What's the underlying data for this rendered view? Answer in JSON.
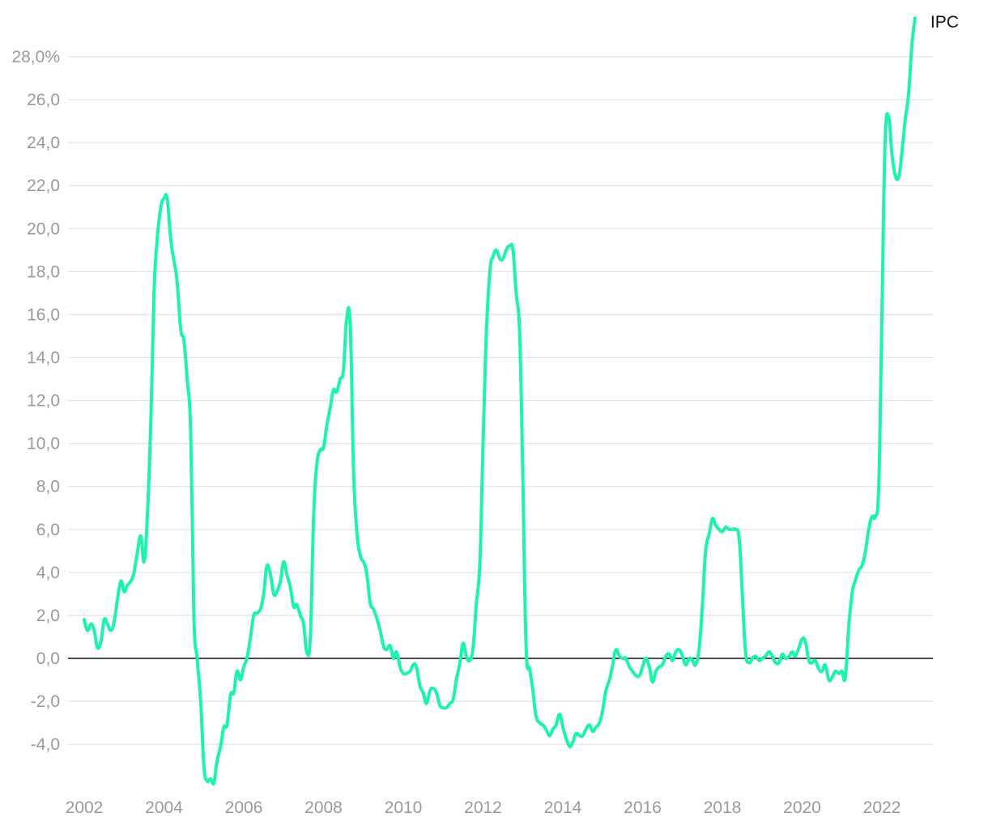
{
  "chart_data": {
    "type": "line",
    "title": "",
    "xlabel": "",
    "ylabel": "",
    "ylim": [
      -6,
      29.5
    ],
    "xlim": [
      2002,
      2023.25
    ],
    "grid": true,
    "legend": "none",
    "y_ticks": [
      {
        "value": 28,
        "label": "28,0%"
      },
      {
        "value": 26,
        "label": "26,0"
      },
      {
        "value": 24,
        "label": "24,0"
      },
      {
        "value": 22,
        "label": "22,0"
      },
      {
        "value": 20,
        "label": "20,0"
      },
      {
        "value": 18,
        "label": "18,0"
      },
      {
        "value": 16,
        "label": "16,0"
      },
      {
        "value": 14,
        "label": "14,0"
      },
      {
        "value": 12,
        "label": "12,0"
      },
      {
        "value": 10,
        "label": "10,0"
      },
      {
        "value": 8,
        "label": "8,0"
      },
      {
        "value": 6,
        "label": "6,0"
      },
      {
        "value": 4,
        "label": "4,0"
      },
      {
        "value": 2,
        "label": "2,0"
      },
      {
        "value": 0,
        "label": "0,0"
      },
      {
        "value": -2,
        "label": "-2,0"
      },
      {
        "value": -4,
        "label": "-4,0"
      }
    ],
    "x_ticks": [
      {
        "value": 2002,
        "label": "2002"
      },
      {
        "value": 2004,
        "label": "2004"
      },
      {
        "value": 2006,
        "label": "2006"
      },
      {
        "value": 2008,
        "label": "2008"
      },
      {
        "value": 2010,
        "label": "2010"
      },
      {
        "value": 2012,
        "label": "2012"
      },
      {
        "value": 2014,
        "label": "2014"
      },
      {
        "value": 2016,
        "label": "2016"
      },
      {
        "value": 2018,
        "label": "2018"
      },
      {
        "value": 2020,
        "label": "2020"
      },
      {
        "value": 2022,
        "label": "2022"
      }
    ],
    "series": [
      {
        "name": "IPC",
        "color": "#1ef2b0",
        "points": [
          [
            2002.0,
            1.8
          ],
          [
            2002.08,
            1.3
          ],
          [
            2002.17,
            1.6
          ],
          [
            2002.25,
            1.3
          ],
          [
            2002.33,
            0.5
          ],
          [
            2002.42,
            0.8
          ],
          [
            2002.5,
            1.8
          ],
          [
            2002.58,
            1.6
          ],
          [
            2002.67,
            1.3
          ],
          [
            2002.75,
            1.7
          ],
          [
            2002.83,
            2.7
          ],
          [
            2002.92,
            3.6
          ],
          [
            2003.0,
            3.1
          ],
          [
            2003.08,
            3.4
          ],
          [
            2003.17,
            3.6
          ],
          [
            2003.25,
            4.0
          ],
          [
            2003.33,
            4.9
          ],
          [
            2003.42,
            5.7
          ],
          [
            2003.5,
            4.5
          ],
          [
            2003.58,
            6.5
          ],
          [
            2003.67,
            11.0
          ],
          [
            2003.75,
            17.0
          ],
          [
            2003.83,
            19.5
          ],
          [
            2003.92,
            21.0
          ],
          [
            2004.0,
            21.4
          ],
          [
            2004.08,
            21.4
          ],
          [
            2004.17,
            19.5
          ],
          [
            2004.25,
            18.5
          ],
          [
            2004.33,
            17.5
          ],
          [
            2004.42,
            15.3
          ],
          [
            2004.5,
            14.8
          ],
          [
            2004.58,
            13.0
          ],
          [
            2004.67,
            10.5
          ],
          [
            2004.75,
            2.0
          ],
          [
            2004.83,
            0.0
          ],
          [
            2004.92,
            -2.0
          ],
          [
            2005.0,
            -5.0
          ],
          [
            2005.08,
            -5.7
          ],
          [
            2005.17,
            -5.6
          ],
          [
            2005.25,
            -5.8
          ],
          [
            2005.33,
            -4.8
          ],
          [
            2005.42,
            -4.1
          ],
          [
            2005.5,
            -3.2
          ],
          [
            2005.58,
            -3.1
          ],
          [
            2005.67,
            -1.7
          ],
          [
            2005.75,
            -1.6
          ],
          [
            2005.83,
            -0.6
          ],
          [
            2005.92,
            -1.0
          ],
          [
            2006.0,
            -0.4
          ],
          [
            2006.08,
            0.0
          ],
          [
            2006.17,
            1.0
          ],
          [
            2006.25,
            2.0
          ],
          [
            2006.33,
            2.1
          ],
          [
            2006.42,
            2.3
          ],
          [
            2006.5,
            3.0
          ],
          [
            2006.58,
            4.3
          ],
          [
            2006.67,
            3.9
          ],
          [
            2006.75,
            3.0
          ],
          [
            2006.83,
            3.1
          ],
          [
            2006.92,
            3.6
          ],
          [
            2007.0,
            4.5
          ],
          [
            2007.08,
            3.9
          ],
          [
            2007.17,
            3.3
          ],
          [
            2007.25,
            2.4
          ],
          [
            2007.33,
            2.5
          ],
          [
            2007.42,
            2.0
          ],
          [
            2007.5,
            1.6
          ],
          [
            2007.58,
            0.3
          ],
          [
            2007.67,
            1.0
          ],
          [
            2007.75,
            6.5
          ],
          [
            2007.83,
            9.0
          ],
          [
            2007.92,
            9.7
          ],
          [
            2008.0,
            9.8
          ],
          [
            2008.08,
            10.8
          ],
          [
            2008.17,
            11.7
          ],
          [
            2008.25,
            12.5
          ],
          [
            2008.33,
            12.4
          ],
          [
            2008.42,
            13.0
          ],
          [
            2008.5,
            13.4
          ],
          [
            2008.58,
            15.8
          ],
          [
            2008.67,
            15.5
          ],
          [
            2008.75,
            9.0
          ],
          [
            2008.83,
            6.0
          ],
          [
            2008.92,
            4.8
          ],
          [
            2009.0,
            4.5
          ],
          [
            2009.08,
            4.0
          ],
          [
            2009.17,
            2.6
          ],
          [
            2009.25,
            2.3
          ],
          [
            2009.33,
            1.9
          ],
          [
            2009.42,
            1.3
          ],
          [
            2009.5,
            0.6
          ],
          [
            2009.58,
            0.4
          ],
          [
            2009.67,
            0.6
          ],
          [
            2009.75,
            0.0
          ],
          [
            2009.83,
            0.3
          ],
          [
            2009.92,
            -0.4
          ],
          [
            2010.0,
            -0.7
          ],
          [
            2010.08,
            -0.7
          ],
          [
            2010.17,
            -0.6
          ],
          [
            2010.25,
            -0.3
          ],
          [
            2010.33,
            -0.4
          ],
          [
            2010.42,
            -1.3
          ],
          [
            2010.5,
            -1.6
          ],
          [
            2010.58,
            -2.1
          ],
          [
            2010.67,
            -1.5
          ],
          [
            2010.75,
            -1.4
          ],
          [
            2010.83,
            -1.6
          ],
          [
            2010.92,
            -2.2
          ],
          [
            2011.0,
            -2.3
          ],
          [
            2011.08,
            -2.3
          ],
          [
            2011.17,
            -2.1
          ],
          [
            2011.25,
            -1.9
          ],
          [
            2011.33,
            -1.0
          ],
          [
            2011.42,
            -0.2
          ],
          [
            2011.5,
            0.7
          ],
          [
            2011.58,
            0.1
          ],
          [
            2011.67,
            -0.1
          ],
          [
            2011.75,
            0.5
          ],
          [
            2011.83,
            2.5
          ],
          [
            2011.92,
            4.5
          ],
          [
            2012.0,
            10.0
          ],
          [
            2012.08,
            15.0
          ],
          [
            2012.17,
            18.0
          ],
          [
            2012.25,
            18.7
          ],
          [
            2012.33,
            19.0
          ],
          [
            2012.42,
            18.6
          ],
          [
            2012.5,
            18.6
          ],
          [
            2012.58,
            19.0
          ],
          [
            2012.67,
            19.2
          ],
          [
            2012.75,
            19.0
          ],
          [
            2012.83,
            17.0
          ],
          [
            2012.92,
            15.0
          ],
          [
            2013.0,
            8.0
          ],
          [
            2013.08,
            0.5
          ],
          [
            2013.17,
            -0.5
          ],
          [
            2013.25,
            -1.5
          ],
          [
            2013.33,
            -2.7
          ],
          [
            2013.42,
            -3.0
          ],
          [
            2013.5,
            -3.1
          ],
          [
            2013.58,
            -3.3
          ],
          [
            2013.67,
            -3.6
          ],
          [
            2013.75,
            -3.3
          ],
          [
            2013.83,
            -3.1
          ],
          [
            2013.92,
            -2.6
          ],
          [
            2014.0,
            -3.2
          ],
          [
            2014.08,
            -3.7
          ],
          [
            2014.17,
            -4.1
          ],
          [
            2014.25,
            -3.9
          ],
          [
            2014.33,
            -3.5
          ],
          [
            2014.42,
            -3.6
          ],
          [
            2014.5,
            -3.6
          ],
          [
            2014.58,
            -3.3
          ],
          [
            2014.67,
            -3.1
          ],
          [
            2014.75,
            -3.4
          ],
          [
            2014.83,
            -3.2
          ],
          [
            2014.92,
            -3.0
          ],
          [
            2015.0,
            -2.4
          ],
          [
            2015.08,
            -1.5
          ],
          [
            2015.17,
            -1.0
          ],
          [
            2015.25,
            -0.3
          ],
          [
            2015.33,
            0.4
          ],
          [
            2015.42,
            0.1
          ],
          [
            2015.5,
            0.0
          ],
          [
            2015.58,
            0.0
          ],
          [
            2015.67,
            -0.4
          ],
          [
            2015.75,
            -0.6
          ],
          [
            2015.83,
            -0.8
          ],
          [
            2015.92,
            -0.8
          ],
          [
            2016.0,
            -0.4
          ],
          [
            2016.08,
            0.0
          ],
          [
            2016.17,
            -0.4
          ],
          [
            2016.25,
            -1.1
          ],
          [
            2016.33,
            -0.6
          ],
          [
            2016.42,
            -0.4
          ],
          [
            2016.5,
            -0.3
          ],
          [
            2016.58,
            0.1
          ],
          [
            2016.67,
            0.2
          ],
          [
            2016.75,
            -0.1
          ],
          [
            2016.83,
            0.3
          ],
          [
            2016.92,
            0.4
          ],
          [
            2017.0,
            0.1
          ],
          [
            2017.08,
            -0.3
          ],
          [
            2017.17,
            0.0
          ],
          [
            2017.25,
            -0.1
          ],
          [
            2017.33,
            -0.3
          ],
          [
            2017.42,
            0.5
          ],
          [
            2017.5,
            2.5
          ],
          [
            2017.58,
            5.0
          ],
          [
            2017.67,
            5.8
          ],
          [
            2017.75,
            6.5
          ],
          [
            2017.83,
            6.2
          ],
          [
            2017.92,
            6.0
          ],
          [
            2018.0,
            5.9
          ],
          [
            2018.08,
            6.1
          ],
          [
            2018.17,
            6.0
          ],
          [
            2018.25,
            6.0
          ],
          [
            2018.33,
            6.0
          ],
          [
            2018.42,
            5.6
          ],
          [
            2018.5,
            3.0
          ],
          [
            2018.58,
            0.3
          ],
          [
            2018.67,
            -0.2
          ],
          [
            2018.75,
            0.0
          ],
          [
            2018.83,
            0.1
          ],
          [
            2018.92,
            -0.1
          ],
          [
            2019.0,
            0.0
          ],
          [
            2019.08,
            0.1
          ],
          [
            2019.17,
            0.3
          ],
          [
            2019.25,
            0.1
          ],
          [
            2019.33,
            -0.2
          ],
          [
            2019.42,
            -0.2
          ],
          [
            2019.5,
            0.2
          ],
          [
            2019.58,
            0.0
          ],
          [
            2019.67,
            0.1
          ],
          [
            2019.75,
            0.3
          ],
          [
            2019.83,
            0.1
          ],
          [
            2019.92,
            0.5
          ],
          [
            2020.0,
            0.9
          ],
          [
            2020.08,
            0.8
          ],
          [
            2020.17,
            -0.1
          ],
          [
            2020.25,
            -0.2
          ],
          [
            2020.33,
            -0.1
          ],
          [
            2020.42,
            -0.5
          ],
          [
            2020.5,
            -0.6
          ],
          [
            2020.58,
            -0.3
          ],
          [
            2020.67,
            -1.0
          ],
          [
            2020.75,
            -0.9
          ],
          [
            2020.83,
            -0.6
          ],
          [
            2020.92,
            -0.7
          ],
          [
            2021.0,
            -0.6
          ],
          [
            2021.08,
            -0.9
          ],
          [
            2021.17,
            1.5
          ],
          [
            2021.25,
            3.0
          ],
          [
            2021.33,
            3.6
          ],
          [
            2021.42,
            4.1
          ],
          [
            2021.5,
            4.3
          ],
          [
            2021.58,
            4.9
          ],
          [
            2021.67,
            6.0
          ],
          [
            2021.75,
            6.6
          ],
          [
            2021.83,
            6.6
          ],
          [
            2021.92,
            8.0
          ],
          [
            2022.0,
            16.0
          ],
          [
            2022.08,
            24.0
          ],
          [
            2022.17,
            25.2
          ],
          [
            2022.25,
            23.5
          ],
          [
            2022.33,
            22.5
          ],
          [
            2022.42,
            22.4
          ],
          [
            2022.5,
            23.5
          ],
          [
            2022.58,
            25.0
          ],
          [
            2022.67,
            26.3
          ],
          [
            2022.75,
            28.5
          ],
          [
            2022.83,
            29.8
          ]
        ]
      }
    ]
  }
}
